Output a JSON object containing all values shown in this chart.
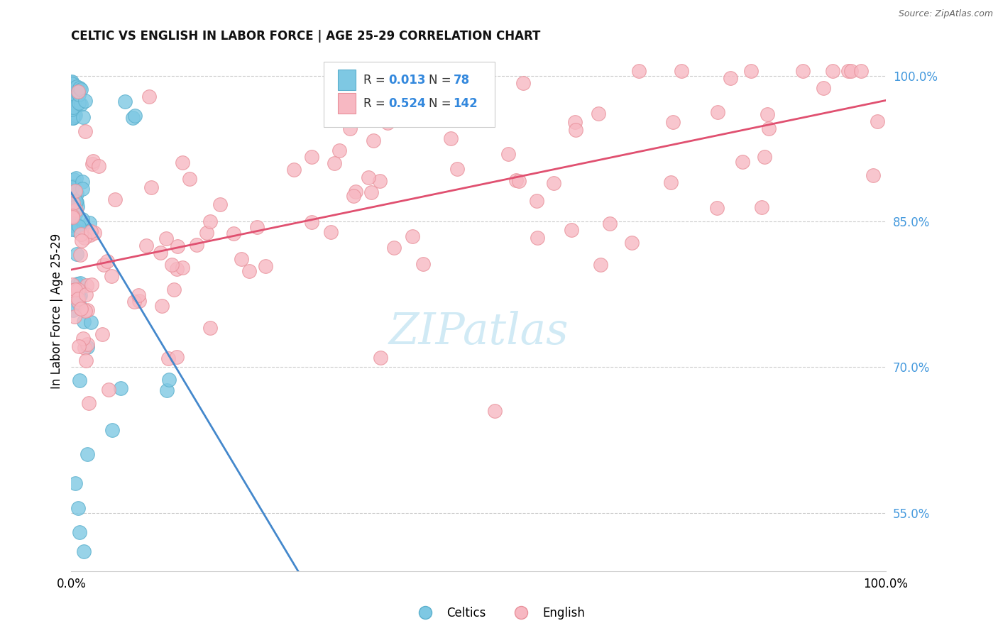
{
  "title": "CELTIC VS ENGLISH IN LABOR FORCE | AGE 25-29 CORRELATION CHART",
  "source": "Source: ZipAtlas.com",
  "ylabel": "In Labor Force | Age 25-29",
  "right_yticks": [
    0.55,
    0.7,
    0.85,
    1.0
  ],
  "right_yticklabels": [
    "55.0%",
    "70.0%",
    "85.0%",
    "100.0%"
  ],
  "celtics_color": "#7ec8e3",
  "celtics_edge": "#5aafcc",
  "english_color": "#f7b8c2",
  "english_edge": "#e8909a",
  "trend_celtics_color": "#4488cc",
  "trend_english_color": "#e05070",
  "legend_R_celtics": "0.013",
  "legend_N_celtics": "78",
  "legend_R_english": "0.524",
  "legend_N_english": "142",
  "watermark_color": "#cce8f4",
  "bg_color": "#ffffff",
  "grid_color": "#cccccc",
  "title_color": "#111111",
  "source_color": "#666666",
  "right_tick_color": "#4499dd",
  "ymin": 0.49,
  "ymax": 1.025,
  "xmin": 0.0,
  "xmax": 1.0
}
